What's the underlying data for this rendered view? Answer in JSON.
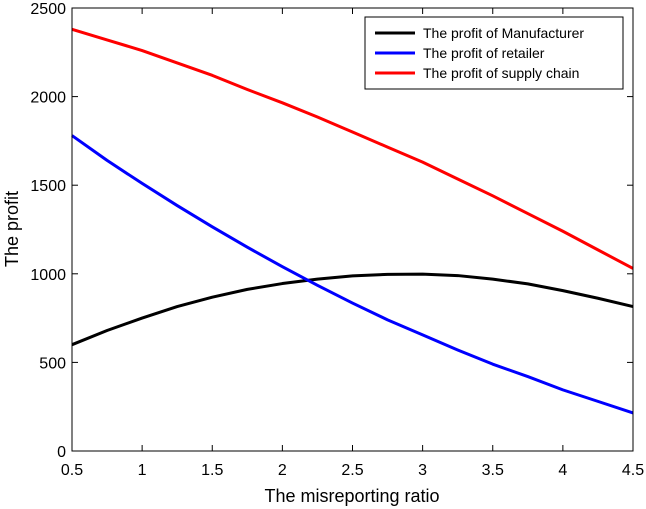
{
  "chart_data": {
    "type": "line",
    "title": "",
    "xlabel": "The misreporting ratio",
    "ylabel": "The profit",
    "xlim": [
      0.5,
      4.5
    ],
    "ylim": [
      0,
      2500
    ],
    "xticks": [
      "0.5",
      "1",
      "1.5",
      "2",
      "2.5",
      "3",
      "3.5",
      "4",
      "4.5"
    ],
    "yticks": [
      "0",
      "500",
      "1000",
      "1500",
      "2000",
      "2500"
    ],
    "grid": false,
    "legend_position": "top-right",
    "x": [
      0.5,
      0.75,
      1.0,
      1.25,
      1.5,
      1.75,
      2.0,
      2.25,
      2.5,
      2.75,
      3.0,
      3.25,
      3.5,
      3.75,
      4.0,
      4.25,
      4.5
    ],
    "series": [
      {
        "name": "The profit of Manufacturer",
        "color": "#000000",
        "values": [
          600,
          680,
          750,
          815,
          868,
          912,
          945,
          970,
          988,
          997,
          998,
          990,
          970,
          943,
          905,
          862,
          815
        ]
      },
      {
        "name": "The profit of retailer",
        "color": "#0000ff",
        "values": [
          1780,
          1640,
          1510,
          1385,
          1265,
          1150,
          1040,
          935,
          835,
          740,
          655,
          570,
          490,
          420,
          345,
          280,
          215
        ]
      },
      {
        "name": "The profit of supply chain",
        "color": "#ff0000",
        "values": [
          2380,
          2320,
          2260,
          2190,
          2120,
          2040,
          1965,
          1885,
          1800,
          1715,
          1630,
          1535,
          1440,
          1340,
          1240,
          1135,
          1030
        ]
      }
    ]
  }
}
